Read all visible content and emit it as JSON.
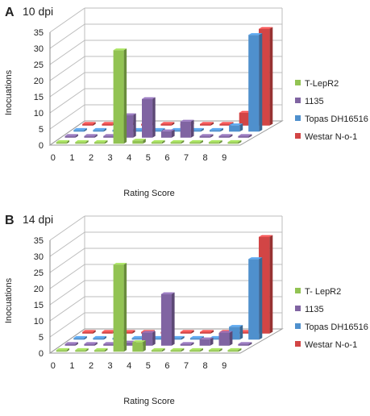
{
  "chart_data": [
    {
      "type": "bar",
      "panel_letter": "A",
      "title": "10 dpi",
      "xlabel": "Rating Score",
      "ylabel": "Inocuations",
      "categories": [
        "0",
        "1",
        "2",
        "3",
        "4",
        "5",
        "6",
        "7",
        "8",
        "9"
      ],
      "yticks": [
        "0",
        "5",
        "10",
        "15",
        "20",
        "25",
        "30",
        "35"
      ],
      "ylim": [
        0,
        35
      ],
      "legend_placement": "right",
      "grid": true,
      "series": [
        {
          "name": "T-LepR2",
          "color": "#92c353",
          "values": [
            0,
            0,
            0,
            29,
            1,
            0,
            0,
            0,
            0,
            0
          ]
        },
        {
          "name": "1135",
          "color": "#8064a2",
          "values": [
            0,
            0,
            0,
            7,
            12,
            2,
            5,
            0,
            0,
            0
          ]
        },
        {
          "name": "Topas DH16516",
          "color": "#4f90cd",
          "values": [
            0,
            0,
            0,
            0,
            0,
            0,
            0,
            0,
            2,
            30
          ]
        },
        {
          "name": "Westar N-o-1",
          "color": "#d24545",
          "values": [
            0,
            0,
            0,
            0,
            0,
            0,
            0,
            0,
            4,
            30
          ]
        }
      ]
    },
    {
      "type": "bar",
      "panel_letter": "B",
      "title": "14 dpi",
      "xlabel": "Rating Score",
      "ylabel": "Inocuations",
      "categories": [
        "0",
        "1",
        "2",
        "3",
        "4",
        "5",
        "6",
        "7",
        "8",
        "9"
      ],
      "yticks": [
        "0",
        "5",
        "10",
        "15",
        "20",
        "25",
        "30",
        "35"
      ],
      "ylim": [
        0,
        35
      ],
      "legend_placement": "right",
      "grid": true,
      "series": [
        {
          "name": "T- LepR2",
          "color": "#92c353",
          "values": [
            0,
            0,
            0,
            27,
            3,
            0,
            0,
            0,
            0,
            0
          ]
        },
        {
          "name": "1135",
          "color": "#8064a2",
          "values": [
            0,
            0,
            0,
            1,
            4,
            16,
            0,
            2,
            4,
            0
          ]
        },
        {
          "name": "Topas DH16516",
          "color": "#4f90cd",
          "values": [
            0,
            0,
            0,
            0,
            0,
            0,
            0,
            0,
            4,
            25
          ]
        },
        {
          "name": "Westar N-o-1",
          "color": "#d24545",
          "values": [
            0,
            0,
            0,
            0,
            0,
            0,
            0,
            0,
            0,
            30
          ]
        }
      ]
    }
  ]
}
